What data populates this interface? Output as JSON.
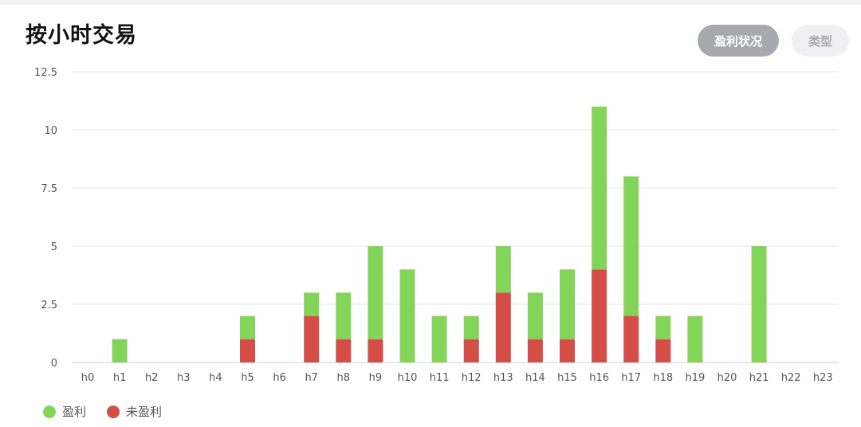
{
  "header": {
    "title": "按小时交易",
    "buttons": [
      "盈利状况",
      "类型"
    ]
  },
  "chart_data": {
    "type": "bar",
    "stacked": true,
    "categories": [
      "h0",
      "h1",
      "h2",
      "h3",
      "h4",
      "h5",
      "h6",
      "h7",
      "h8",
      "h9",
      "h10",
      "h11",
      "h12",
      "h13",
      "h14",
      "h15",
      "h16",
      "h17",
      "h18",
      "h19",
      "h20",
      "h21",
      "h22",
      "h23"
    ],
    "series": [
      {
        "name": "未盈利",
        "color": "#d54d47",
        "values": [
          0,
          0,
          0,
          0,
          0,
          1,
          0,
          2,
          1,
          1,
          0,
          0,
          1,
          3,
          1,
          1,
          4,
          2,
          1,
          0,
          0,
          0,
          0,
          0
        ]
      },
      {
        "name": "盈利",
        "color": "#84d45a",
        "values": [
          0,
          1,
          0,
          0,
          0,
          1,
          0,
          1,
          2,
          4,
          4,
          2,
          1,
          2,
          2,
          3,
          7,
          6,
          1,
          2,
          0,
          5,
          0,
          0
        ]
      }
    ],
    "yticks": [
      "0",
      "2.5",
      "5",
      "7.5",
      "10",
      "12.5"
    ],
    "ylim": [
      0,
      12.5
    ],
    "grid": true,
    "legend_position": "bottom-left",
    "legend": [
      {
        "label": "盈利",
        "color": "#84d45a"
      },
      {
        "label": "未盈利",
        "color": "#d54d47"
      }
    ]
  }
}
